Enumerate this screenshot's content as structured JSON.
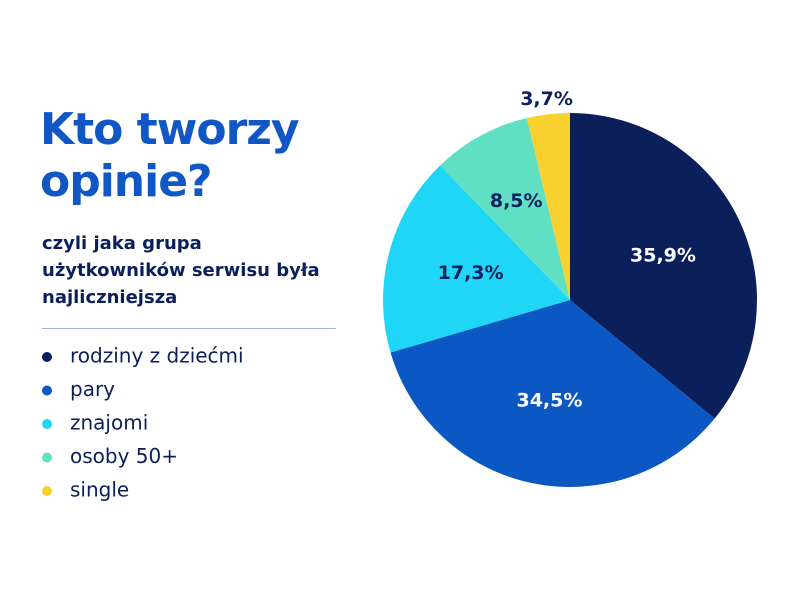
{
  "chart_data": {
    "type": "pie",
    "title": "Kto tworzy opinie?",
    "subtitle": "czyli jaka grupa użytkowników serwisu była najliczniejsza",
    "categories": [
      "rodziny z dziećmi",
      "pary",
      "znajomi",
      "osoby 50+",
      "single"
    ],
    "values": [
      35.9,
      34.5,
      17.3,
      8.5,
      3.7
    ],
    "value_labels": [
      "35,9%",
      "34,5%",
      "17,3%",
      "8,5%",
      "3,7%"
    ],
    "colors": [
      "#0b1f5b",
      "#0b57c3",
      "#1fd6f7",
      "#5fe0c3",
      "#f8d12f"
    ],
    "legend": "left"
  }
}
